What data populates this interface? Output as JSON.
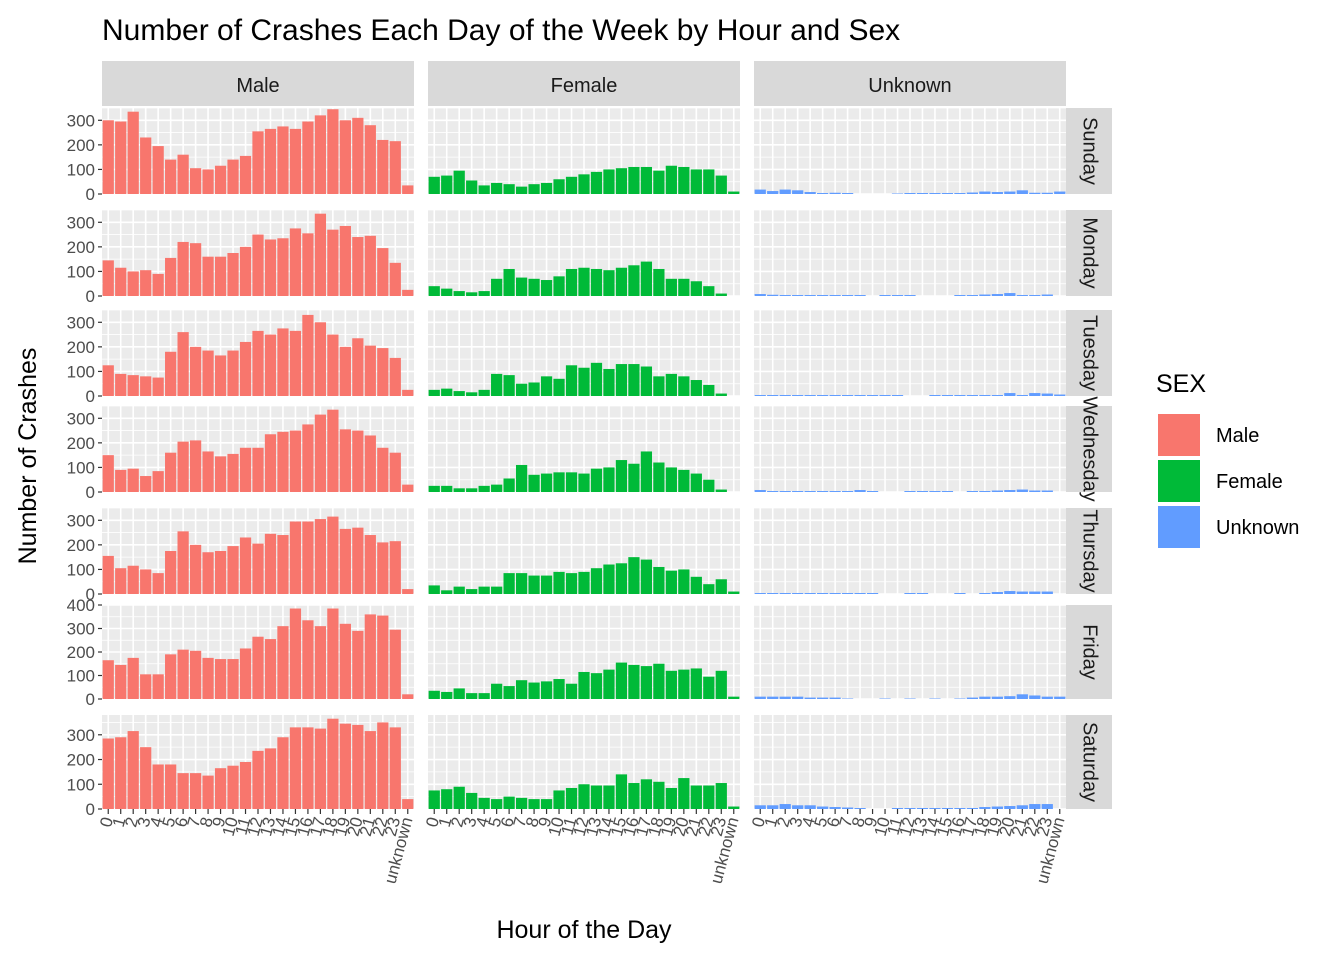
{
  "chart_data": {
    "type": "bar",
    "title": "Number of Crashes Each Day of the Week by Hour and Sex",
    "xlabel": "Hour of the Day",
    "ylabel": "Number of Crashes",
    "legend_title": "SEX",
    "legend_placement": "right",
    "grid": true,
    "categories": [
      "0",
      "1",
      "2",
      "3",
      "4",
      "5",
      "6",
      "7",
      "8",
      "9",
      "10",
      "11",
      "12",
      "13",
      "14",
      "15",
      "16",
      "17",
      "18",
      "19",
      "20",
      "21",
      "22",
      "23",
      "unknown"
    ],
    "x_tick_labels": [
      "0",
      "",
      "2",
      "",
      "4",
      "",
      "6",
      "",
      "8",
      "",
      "10",
      "",
      "12",
      "",
      "14",
      "",
      "16",
      "",
      "18",
      "",
      "20",
      "",
      "22",
      "",
      "unknown"
    ],
    "x_tick_labels_alt": [
      "",
      "1",
      "",
      "3",
      "",
      "5",
      "",
      "7",
      "",
      "9",
      "",
      "11",
      "",
      "13",
      "",
      "15",
      "",
      "17",
      "",
      "19",
      "",
      "21",
      "",
      "23",
      ""
    ],
    "columns": [
      "Male",
      "Female",
      "Unknown"
    ],
    "rows": [
      "Sunday",
      "Monday",
      "Tuesday",
      "Wednesday",
      "Thursday",
      "Friday",
      "Saturday"
    ],
    "series_colors": {
      "Male": "#F8766D",
      "Female": "#00BA38",
      "Unknown": "#619CFF"
    },
    "rows_meta": [
      {
        "ylim": [
          0,
          350
        ],
        "yticks": [
          0,
          100,
          200,
          300
        ]
      },
      {
        "ylim": [
          0,
          350
        ],
        "yticks": [
          0,
          100,
          200,
          300
        ]
      },
      {
        "ylim": [
          0,
          350
        ],
        "yticks": [
          0,
          100,
          200,
          300
        ]
      },
      {
        "ylim": [
          0,
          350
        ],
        "yticks": [
          0,
          100,
          200,
          300
        ]
      },
      {
        "ylim": [
          0,
          350
        ],
        "yticks": [
          0,
          100,
          200,
          300
        ]
      },
      {
        "ylim": [
          0,
          400
        ],
        "yticks": [
          0,
          100,
          200,
          300,
          400
        ]
      },
      {
        "ylim": [
          0,
          380
        ],
        "yticks": [
          0,
          100,
          200,
          300
        ]
      }
    ],
    "values": {
      "Sunday": {
        "Male": [
          300,
          295,
          335,
          230,
          195,
          140,
          160,
          105,
          100,
          115,
          140,
          155,
          255,
          265,
          275,
          265,
          295,
          320,
          345,
          300,
          310,
          280,
          220,
          215,
          35
        ],
        "Female": [
          70,
          75,
          95,
          55,
          35,
          45,
          40,
          30,
          40,
          45,
          60,
          70,
          80,
          90,
          100,
          105,
          110,
          110,
          95,
          115,
          110,
          100,
          100,
          75,
          10
        ],
        "Unknown": [
          18,
          12,
          18,
          15,
          8,
          4,
          5,
          4,
          0,
          0,
          0,
          2,
          4,
          4,
          4,
          4,
          4,
          6,
          10,
          8,
          10,
          15,
          5,
          5,
          10
        ]
      },
      "Monday": {
        "Male": [
          145,
          115,
          100,
          105,
          90,
          155,
          220,
          215,
          160,
          160,
          175,
          200,
          250,
          230,
          235,
          275,
          255,
          335,
          270,
          285,
          240,
          245,
          195,
          135,
          25
        ],
        "Female": [
          40,
          30,
          20,
          15,
          20,
          70,
          110,
          75,
          70,
          65,
          80,
          110,
          115,
          110,
          105,
          115,
          125,
          140,
          110,
          70,
          70,
          60,
          40,
          10,
          0
        ],
        "Unknown": [
          8,
          5,
          4,
          4,
          4,
          4,
          4,
          4,
          4,
          0,
          4,
          4,
          4,
          0,
          0,
          0,
          4,
          4,
          6,
          8,
          12,
          4,
          4,
          6,
          0
        ]
      },
      "Tuesday": {
        "Male": [
          125,
          90,
          85,
          80,
          75,
          180,
          260,
          200,
          185,
          165,
          185,
          220,
          265,
          250,
          275,
          265,
          330,
          300,
          250,
          200,
          235,
          205,
          195,
          155,
          25
        ],
        "Female": [
          25,
          30,
          20,
          15,
          25,
          90,
          85,
          50,
          55,
          80,
          70,
          125,
          115,
          135,
          110,
          130,
          130,
          120,
          80,
          90,
          80,
          65,
          45,
          10,
          0
        ],
        "Unknown": [
          4,
          4,
          4,
          4,
          4,
          4,
          4,
          4,
          4,
          4,
          4,
          4,
          0,
          0,
          4,
          4,
          4,
          4,
          4,
          4,
          12,
          4,
          12,
          10,
          6
        ]
      },
      "Wednesday": {
        "Male": [
          150,
          90,
          95,
          65,
          85,
          160,
          205,
          210,
          165,
          145,
          155,
          180,
          180,
          235,
          245,
          250,
          275,
          315,
          335,
          255,
          250,
          230,
          180,
          160,
          30
        ],
        "Female": [
          25,
          25,
          15,
          15,
          25,
          30,
          55,
          110,
          70,
          75,
          80,
          80,
          75,
          95,
          100,
          130,
          115,
          165,
          120,
          100,
          90,
          75,
          50,
          10,
          0
        ],
        "Unknown": [
          8,
          4,
          4,
          4,
          4,
          4,
          4,
          4,
          8,
          4,
          0,
          0,
          4,
          4,
          4,
          4,
          0,
          4,
          4,
          6,
          8,
          10,
          6,
          6,
          0
        ]
      },
      "Thursday": {
        "Male": [
          155,
          105,
          115,
          100,
          85,
          175,
          255,
          200,
          170,
          175,
          195,
          230,
          205,
          245,
          240,
          295,
          295,
          305,
          315,
          265,
          270,
          240,
          210,
          215,
          20
        ],
        "Female": [
          35,
          15,
          30,
          20,
          30,
          30,
          85,
          85,
          75,
          75,
          90,
          85,
          90,
          105,
          120,
          125,
          150,
          140,
          110,
          95,
          100,
          70,
          40,
          60,
          10
        ],
        "Unknown": [
          4,
          4,
          4,
          4,
          4,
          4,
          4,
          4,
          4,
          4,
          0,
          0,
          4,
          4,
          0,
          0,
          4,
          0,
          4,
          8,
          12,
          10,
          10,
          10,
          0
        ]
      },
      "Friday": {
        "Male": [
          165,
          145,
          175,
          105,
          105,
          190,
          210,
          205,
          175,
          170,
          170,
          215,
          265,
          255,
          310,
          385,
          335,
          310,
          385,
          320,
          290,
          360,
          355,
          295,
          20
        ],
        "Female": [
          35,
          30,
          45,
          25,
          25,
          65,
          55,
          80,
          70,
          75,
          85,
          65,
          115,
          110,
          125,
          155,
          145,
          140,
          150,
          120,
          125,
          130,
          95,
          120,
          10
        ],
        "Unknown": [
          10,
          10,
          10,
          10,
          6,
          6,
          6,
          2,
          0,
          0,
          2,
          0,
          2,
          0,
          2,
          0,
          2,
          6,
          10,
          10,
          12,
          20,
          15,
          10,
          10
        ]
      },
      "Saturday": {
        "Male": [
          285,
          290,
          315,
          250,
          180,
          180,
          145,
          145,
          135,
          165,
          175,
          190,
          235,
          245,
          290,
          330,
          330,
          325,
          365,
          345,
          340,
          315,
          350,
          330,
          40
        ],
        "Female": [
          75,
          80,
          90,
          65,
          45,
          40,
          50,
          45,
          40,
          40,
          75,
          85,
          100,
          95,
          95,
          140,
          105,
          120,
          110,
          85,
          125,
          95,
          95,
          105,
          10
        ],
        "Unknown": [
          15,
          15,
          20,
          15,
          15,
          10,
          8,
          6,
          4,
          0,
          0,
          4,
          4,
          4,
          4,
          4,
          4,
          4,
          8,
          10,
          12,
          15,
          20,
          20,
          0
        ]
      }
    }
  }
}
